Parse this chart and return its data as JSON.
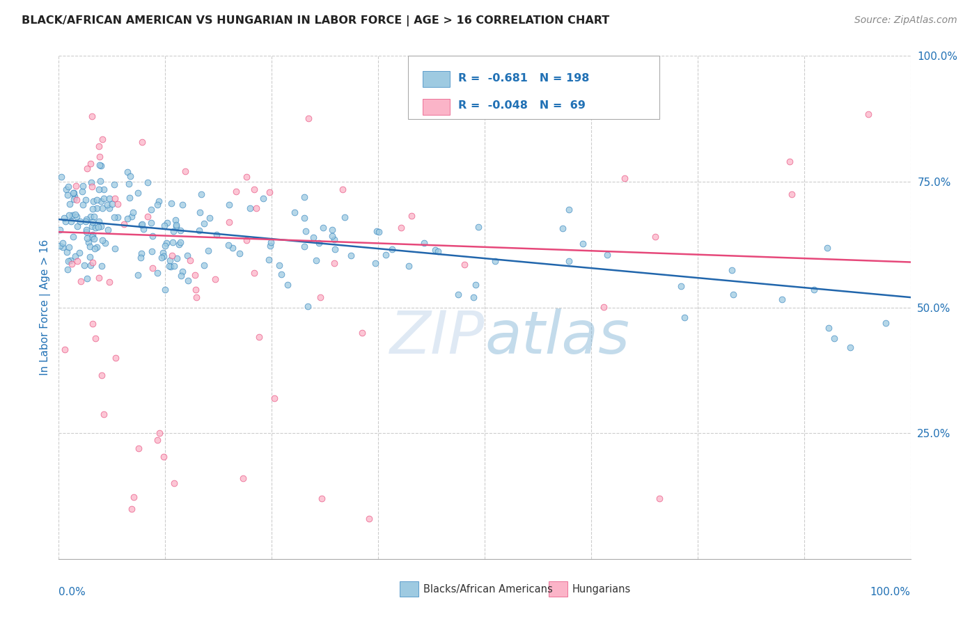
{
  "title": "BLACK/AFRICAN AMERICAN VS HUNGARIAN IN LABOR FORCE | AGE > 16 CORRELATION CHART",
  "source": "Source: ZipAtlas.com",
  "ylabel": "In Labor Force | Age > 16",
  "legend_label1": "Blacks/African Americans",
  "legend_label2": "Hungarians",
  "r1": -0.681,
  "n1": 198,
  "r2": -0.048,
  "n2": 69,
  "blue_face_color": "#9ecae1",
  "blue_edge_color": "#3182bd",
  "pink_face_color": "#fbb4c8",
  "pink_edge_color": "#e6487a",
  "blue_line_color": "#2166ac",
  "pink_line_color": "#d6604d",
  "text_color": "#2171b5",
  "background_color": "#ffffff",
  "grid_color": "#cccccc",
  "right_ytick_vals": [
    1.0,
    0.75,
    0.5,
    0.25
  ],
  "right_ytick_labels": [
    "100.0%",
    "75.0%",
    "50.0%",
    "25.0%"
  ],
  "xlim": [
    0.0,
    1.0
  ],
  "ylim": [
    0.0,
    1.0
  ],
  "blue_trend_y0": 0.675,
  "blue_trend_y1": 0.52,
  "pink_trend_y0": 0.65,
  "pink_trend_y1": 0.59
}
